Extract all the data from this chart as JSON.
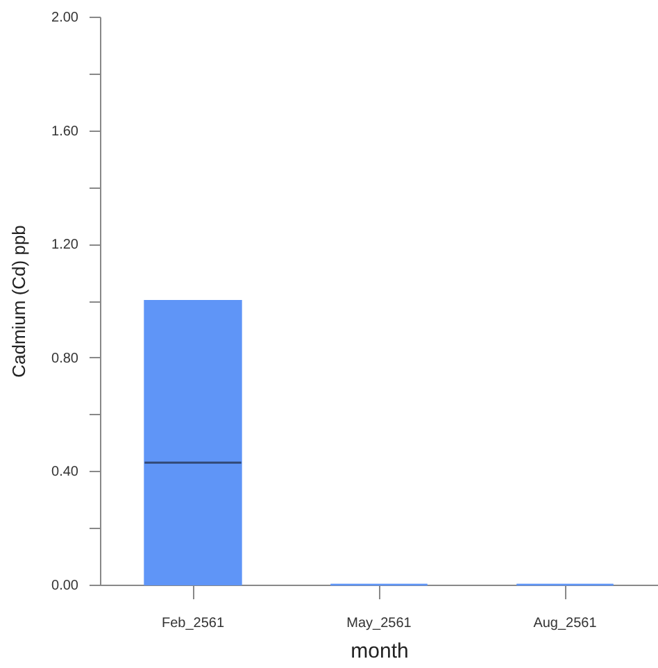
{
  "chart_data": {
    "type": "box",
    "xlabel": "month",
    "ylabel": "Cadmium (Cd) ppb",
    "categories": [
      "Feb_2561",
      "May_2561",
      "Aug_2561"
    ],
    "boxes": [
      {
        "low": 0,
        "q1": 0,
        "median": 0.43,
        "q3": 1.0,
        "high": 1.0
      },
      {
        "low": 0,
        "q1": 0,
        "median": 0,
        "q3": 0,
        "high": 0
      },
      {
        "low": 0,
        "q1": 0,
        "median": 0,
        "q3": 0,
        "high": 0
      }
    ],
    "color": "#5f95f7",
    "ylim": [
      0,
      2
    ],
    "yticks": [
      {
        "value": 0,
        "label": "0.00"
      },
      {
        "value": 0.2,
        "label": null
      },
      {
        "value": 0.4,
        "label": "0.40"
      },
      {
        "value": 0.6,
        "label": null
      },
      {
        "value": 0.8,
        "label": "0.80"
      },
      {
        "value": 1.0,
        "label": null
      },
      {
        "value": 1.2,
        "label": "1.20"
      },
      {
        "value": 1.4,
        "label": null
      },
      {
        "value": 1.6,
        "label": "1.60"
      },
      {
        "value": 1.8,
        "label": null
      },
      {
        "value": 2.0,
        "label": "2.00"
      }
    ]
  }
}
